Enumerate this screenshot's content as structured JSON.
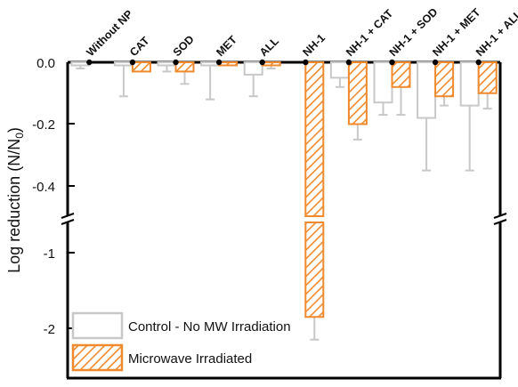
{
  "chart_data": {
    "type": "bar",
    "title": "",
    "xlabel": "",
    "ylabel": "Log reduction",
    "ylabel_unit_main": "(N/N",
    "ylabel_unit_sub": "0",
    "ylabel_unit_end": ")",
    "categories": [
      "Without NP",
      "CAT",
      "SOD",
      "MET",
      "ALL",
      "NH-1",
      "NH-1 + CAT",
      "NH-1 + SOD",
      "NH-1 + MET",
      "NH-1 + ALL"
    ],
    "y_ticks": [
      "0.0",
      "-0.2",
      "-0.4",
      "-1",
      "-2"
    ],
    "y_axis_break": true,
    "series": [
      {
        "name": "Control - No MW Irradiation",
        "color": "#c8c8c8",
        "fill": "none",
        "values": [
          -0.01,
          -0.01,
          -0.01,
          -0.01,
          -0.04,
          0,
          -0.05,
          -0.13,
          -0.18,
          -0.14
        ],
        "error": [
          0.01,
          0.1,
          0.02,
          0.11,
          0.07,
          0,
          0.03,
          0.04,
          0.17,
          0.21
        ]
      },
      {
        "name": "Microwave Irradiated",
        "color": "#f08a2c",
        "fill": "hatched",
        "values": [
          0,
          -0.03,
          -0.03,
          -0.01,
          -0.01,
          -1.85,
          -0.2,
          -0.08,
          -0.11,
          -0.1
        ],
        "error": [
          0,
          0,
          0.04,
          0,
          0.01,
          0.3,
          0.05,
          0.09,
          0.03,
          0.05
        ]
      }
    ]
  }
}
